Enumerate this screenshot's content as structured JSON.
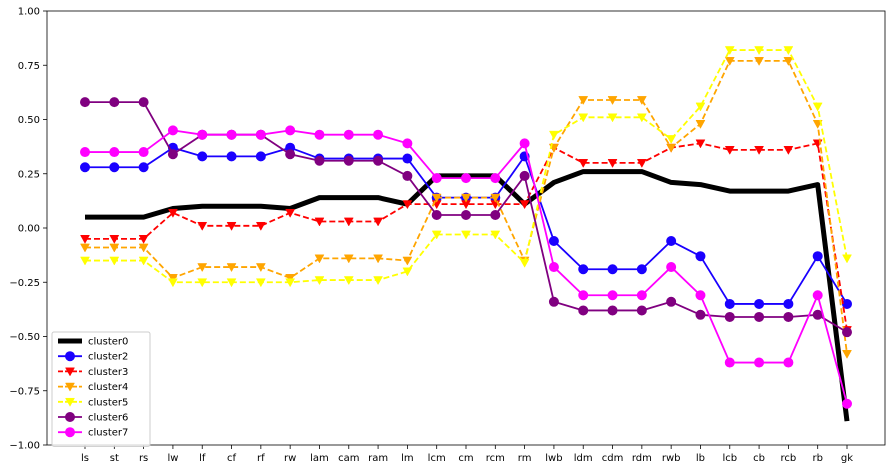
{
  "chart_data": {
    "type": "line",
    "title": "",
    "xlabel": "",
    "ylabel": "",
    "ylim": [
      -1.0,
      1.0
    ],
    "yticks": [
      -1.0,
      -0.75,
      -0.5,
      -0.25,
      0.0,
      0.25,
      0.5,
      0.75,
      1.0
    ],
    "ytick_labels": [
      "−1.00",
      "−0.75",
      "−0.50",
      "−0.25",
      "0.00",
      "0.25",
      "0.50",
      "0.75",
      "1.00"
    ],
    "grid": false,
    "legend_position": "lower-left",
    "categories": [
      "ls",
      "st",
      "rs",
      "lw",
      "lf",
      "cf",
      "rf",
      "rw",
      "lam",
      "cam",
      "ram",
      "lm",
      "lcm",
      "cm",
      "rcm",
      "rm",
      "lwb",
      "ldm",
      "cdm",
      "rdm",
      "rwb",
      "lb",
      "lcb",
      "cb",
      "rcb",
      "rb",
      "gk"
    ],
    "series": [
      {
        "name": "cluster0",
        "color": "#000000",
        "style": "solid",
        "marker": "none",
        "values": [
          0.05,
          0.05,
          0.05,
          0.09,
          0.1,
          0.1,
          0.1,
          0.09,
          0.14,
          0.14,
          0.14,
          0.11,
          0.24,
          0.24,
          0.24,
          0.11,
          0.21,
          0.26,
          0.26,
          0.26,
          0.21,
          0.2,
          0.17,
          0.17,
          0.17,
          0.2,
          -0.89
        ]
      },
      {
        "name": "cluster2",
        "color": "#1a00ff",
        "style": "solid",
        "marker": "circle",
        "values": [
          0.28,
          0.28,
          0.28,
          0.37,
          0.33,
          0.33,
          0.33,
          0.37,
          0.32,
          0.32,
          0.32,
          0.32,
          0.14,
          0.14,
          0.14,
          0.33,
          -0.06,
          -0.19,
          -0.19,
          -0.19,
          -0.06,
          -0.13,
          -0.35,
          -0.35,
          -0.35,
          -0.13,
          -0.35
        ]
      },
      {
        "name": "cluster3",
        "color": "#ff0000",
        "style": "dashed",
        "marker": "triangle-down",
        "values": [
          -0.05,
          -0.05,
          -0.05,
          0.07,
          0.01,
          0.01,
          0.01,
          0.07,
          0.03,
          0.03,
          0.03,
          0.11,
          0.11,
          0.11,
          0.11,
          0.11,
          0.37,
          0.3,
          0.3,
          0.3,
          0.37,
          0.39,
          0.36,
          0.36,
          0.36,
          0.39,
          -0.47
        ]
      },
      {
        "name": "cluster4",
        "color": "#ffa500",
        "style": "dashed",
        "marker": "triangle-down",
        "values": [
          -0.09,
          -0.09,
          -0.09,
          -0.23,
          -0.18,
          -0.18,
          -0.18,
          -0.23,
          -0.14,
          -0.14,
          -0.14,
          -0.15,
          0.14,
          0.14,
          0.14,
          -0.15,
          0.37,
          0.59,
          0.59,
          0.59,
          0.37,
          0.48,
          0.77,
          0.77,
          0.77,
          0.48,
          -0.58
        ]
      },
      {
        "name": "cluster5",
        "color": "#ffff00",
        "style": "dashed",
        "marker": "triangle-down",
        "values": [
          -0.15,
          -0.15,
          -0.15,
          -0.25,
          -0.25,
          -0.25,
          -0.25,
          -0.25,
          -0.24,
          -0.24,
          -0.24,
          -0.2,
          -0.03,
          -0.03,
          -0.03,
          -0.16,
          0.43,
          0.51,
          0.51,
          0.51,
          0.41,
          0.56,
          0.82,
          0.82,
          0.82,
          0.56,
          -0.14
        ]
      },
      {
        "name": "cluster6",
        "color": "#800080",
        "style": "solid",
        "marker": "circle",
        "values": [
          0.58,
          0.58,
          0.58,
          0.34,
          0.43,
          0.43,
          0.43,
          0.34,
          0.31,
          0.31,
          0.31,
          0.24,
          0.06,
          0.06,
          0.06,
          0.24,
          -0.34,
          -0.38,
          -0.38,
          -0.38,
          -0.34,
          -0.4,
          -0.41,
          -0.41,
          -0.41,
          -0.4,
          -0.48
        ]
      },
      {
        "name": "cluster7",
        "color": "#ff00ff",
        "style": "solid",
        "marker": "circle",
        "values": [
          0.35,
          0.35,
          0.35,
          0.45,
          0.43,
          0.43,
          0.43,
          0.45,
          0.43,
          0.43,
          0.43,
          0.39,
          0.23,
          0.23,
          0.23,
          0.39,
          -0.18,
          -0.31,
          -0.31,
          -0.31,
          -0.18,
          -0.31,
          -0.62,
          -0.62,
          -0.62,
          -0.31,
          -0.81
        ]
      }
    ]
  }
}
